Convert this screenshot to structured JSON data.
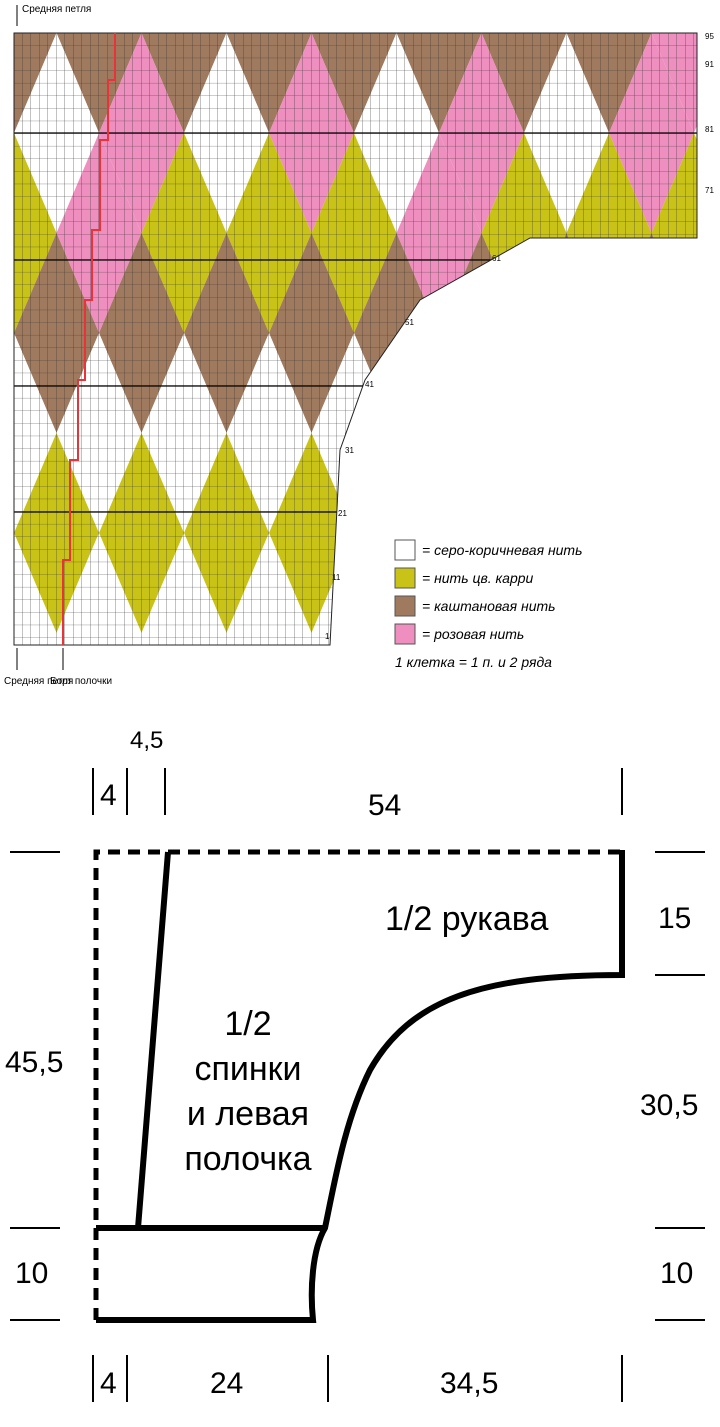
{
  "chart": {
    "top_label": "Средняя петля",
    "bottom_labels": [
      "Средняя петля",
      "Борт полочки"
    ],
    "row_labels": [
      95,
      91,
      81,
      71,
      61,
      51,
      41,
      31,
      21,
      11,
      1
    ],
    "legend": [
      {
        "label": "= серо-коричневая нить",
        "color": "#ffffff"
      },
      {
        "label": "= нить цв. карри",
        "color": "#c9c318"
      },
      {
        "label": "= каштановая нить",
        "color": "#a07a5e"
      },
      {
        "label": "= розовая нить",
        "color": "#ef8fbf"
      }
    ],
    "legend_note": "1 клетка = 1 п. и 2 ряда"
  },
  "schema": {
    "top": [
      "4,5",
      "4",
      "54"
    ],
    "left": [
      "45,5",
      "10"
    ],
    "right": [
      "15",
      "30,5",
      "10"
    ],
    "bottom": [
      "4",
      "24",
      "34,5"
    ],
    "sleeve": "1/2 рукава",
    "body": [
      "1/2",
      "спинки",
      "и левая",
      "полочка"
    ]
  }
}
